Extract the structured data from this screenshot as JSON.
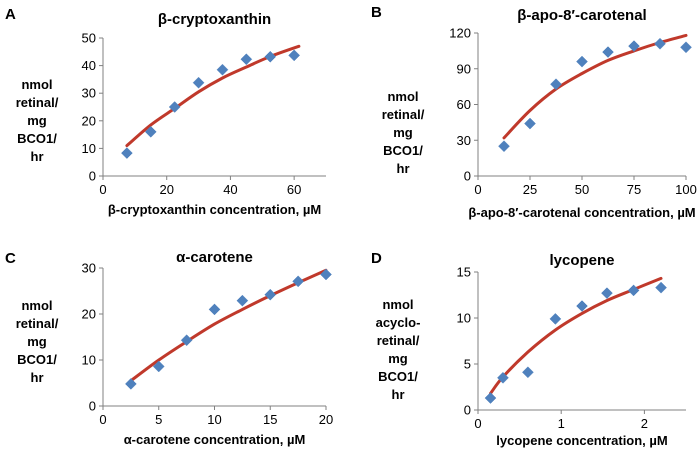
{
  "figure": {
    "label_color": "#000000",
    "point_color": "#4f81bd",
    "curve_color": "#c0392b"
  },
  "chart_data": [
    {
      "type": "scatter",
      "panel": "A",
      "title": "β-cryptoxanthin",
      "xlabel": "β-cryptoxanthin concentration, µM",
      "ylabel_lines": [
        "nmol",
        "retinal/",
        "mg",
        "BCO1/",
        "hr"
      ],
      "xlim": [
        0,
        70
      ],
      "ylim": [
        0,
        50
      ],
      "xticks": [
        0,
        20,
        40,
        60
      ],
      "yticks": [
        0,
        10,
        20,
        30,
        40,
        50
      ],
      "x": [
        7.5,
        15,
        22.5,
        30,
        37.5,
        45,
        52.5,
        60
      ],
      "y": [
        8.3,
        16,
        25,
        33.8,
        38.5,
        42.3,
        43.2,
        43.7
      ],
      "fit": {
        "x": [
          7.5,
          15,
          22.5,
          30,
          37.5,
          45,
          52.5,
          61.5
        ],
        "y": [
          11,
          18.5,
          24.5,
          30.5,
          35.5,
          39.5,
          43.3,
          47
        ]
      }
    },
    {
      "type": "scatter",
      "panel": "B",
      "title": "β-apo-8′-carotenal",
      "xlabel": "β-apo-8′-carotenal concentration, µM",
      "ylabel_lines": [
        "nmol",
        "retinal/",
        "mg",
        "BCO1/",
        "hr"
      ],
      "xlim": [
        0,
        100
      ],
      "ylim": [
        0,
        120
      ],
      "xticks": [
        0,
        25,
        50,
        75,
        100
      ],
      "yticks": [
        0,
        30,
        60,
        90,
        120
      ],
      "x": [
        12.5,
        25,
        37.5,
        50,
        62.5,
        75,
        87.5,
        100
      ],
      "y": [
        25,
        44,
        77,
        96,
        104,
        109,
        111,
        108
      ],
      "fit": {
        "x": [
          12.5,
          25,
          37.5,
          50,
          62.5,
          75,
          87.5,
          100
        ],
        "y": [
          32,
          55,
          73,
          86,
          97,
          105,
          112,
          118
        ]
      }
    },
    {
      "type": "scatter",
      "panel": "C",
      "title": "α-carotene",
      "xlabel": "α-carotene concentration, µM",
      "ylabel_lines": [
        "nmol",
        "retinal/",
        "mg",
        "BCO1/",
        "hr"
      ],
      "xlim": [
        0,
        20
      ],
      "ylim": [
        0,
        30
      ],
      "xticks": [
        0,
        5,
        10,
        15,
        20
      ],
      "yticks": [
        0,
        10,
        20,
        30
      ],
      "x": [
        2.5,
        5,
        7.5,
        10,
        12.5,
        15,
        17.5,
        20
      ],
      "y": [
        4.8,
        8.6,
        14.3,
        21,
        22.9,
        24.2,
        27.1,
        28.6
      ],
      "fit": {
        "x": [
          2.5,
          5,
          7.5,
          10,
          12.5,
          15,
          17.5,
          20
        ],
        "y": [
          5.5,
          10,
          14,
          17.8,
          21,
          24,
          26.8,
          29.5
        ]
      }
    },
    {
      "type": "scatter",
      "panel": "D",
      "title": "lycopene",
      "xlabel": "lycopene concentration, µM",
      "ylabel_lines": [
        "nmol",
        "acyclo-",
        "retinal/",
        "mg",
        "BCO1/",
        "hr"
      ],
      "xlim": [
        0,
        2.5
      ],
      "ylim": [
        0,
        15
      ],
      "xticks": [
        0,
        1,
        2
      ],
      "yticks": [
        0,
        5,
        10,
        15
      ],
      "x": [
        0.15,
        0.3,
        0.6,
        0.93,
        1.25,
        1.55,
        1.87,
        2.2
      ],
      "y": [
        1.3,
        3.5,
        4.1,
        9.9,
        11.3,
        12.7,
        13,
        13.3
      ],
      "fit": {
        "x": [
          0.15,
          0.3,
          0.6,
          0.93,
          1.25,
          1.55,
          1.87,
          2.2
        ],
        "y": [
          1.8,
          3.6,
          6.3,
          8.7,
          10.5,
          11.9,
          13.1,
          14.3
        ]
      }
    }
  ]
}
